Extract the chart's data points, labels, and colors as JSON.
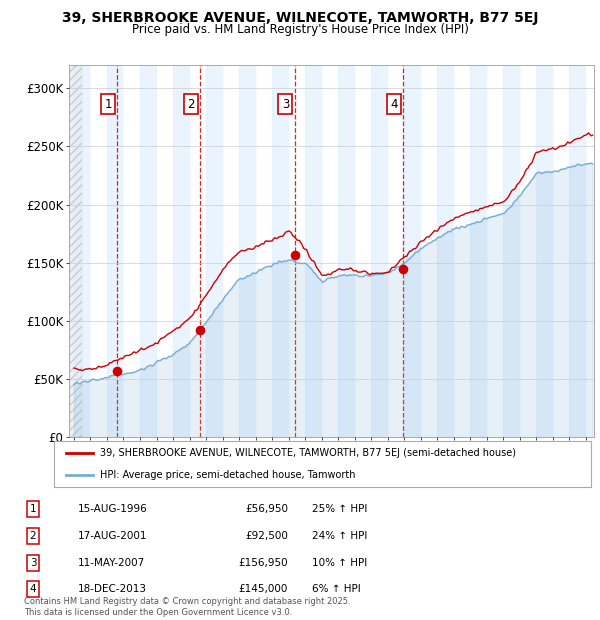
{
  "title": "39, SHERBROOKE AVENUE, WILNECOTE, TAMWORTH, B77 5EJ",
  "subtitle": "Price paid vs. HM Land Registry's House Price Index (HPI)",
  "ylim": [
    0,
    320000
  ],
  "yticks": [
    0,
    50000,
    100000,
    150000,
    200000,
    250000,
    300000
  ],
  "ytick_labels": [
    "£0",
    "£50K",
    "£100K",
    "£150K",
    "£200K",
    "£250K",
    "£300K"
  ],
  "x_start_year": 1994,
  "x_end_year": 2025.5,
  "purchases": [
    {
      "date_dec": 1996.62,
      "price": 56950,
      "label": "1"
    },
    {
      "date_dec": 2001.62,
      "price": 92500,
      "label": "2"
    },
    {
      "date_dec": 2007.36,
      "price": 156950,
      "label": "3"
    },
    {
      "date_dec": 2013.96,
      "price": 145000,
      "label": "4"
    }
  ],
  "table_rows": [
    {
      "num": "1",
      "date": "15-AUG-1996",
      "price": "£56,950",
      "hpi": "25% ↑ HPI"
    },
    {
      "num": "2",
      "date": "17-AUG-2001",
      "price": "£92,500",
      "hpi": "24% ↑ HPI"
    },
    {
      "num": "3",
      "date": "11-MAY-2007",
      "price": "£156,950",
      "hpi": "10% ↑ HPI"
    },
    {
      "num": "4",
      "date": "18-DEC-2013",
      "price": "£145,000",
      "hpi": "6% ↑ HPI"
    }
  ],
  "legend_line1": "39, SHERBROOKE AVENUE, WILNECOTE, TAMWORTH, B77 5EJ (semi-detached house)",
  "legend_line2": "HPI: Average price, semi-detached house, Tamworth",
  "footnote": "Contains HM Land Registry data © Crown copyright and database right 2025.\nThis data is licensed under the Open Government Licence v3.0.",
  "line_color": "#cc0000",
  "hpi_color": "#7aadcf",
  "bg_shade_color": "#ddeeff",
  "vline_color": "#cc0000",
  "hpi_anchor": {
    "1994.0": 46000,
    "1995.0": 47000,
    "1996.0": 49000,
    "1997.0": 54000,
    "1998.0": 58000,
    "1999.0": 64000,
    "2000.0": 72000,
    "2001.0": 82000,
    "2002.0": 98000,
    "2003.0": 118000,
    "2004.0": 135000,
    "2005.0": 142000,
    "2006.0": 148000,
    "2007.0": 152000,
    "2008.0": 148000,
    "2009.0": 132000,
    "2010.0": 138000,
    "2011.0": 138000,
    "2012.0": 138000,
    "2013.0": 140000,
    "2014.0": 150000,
    "2015.0": 162000,
    "2016.0": 172000,
    "2017.0": 180000,
    "2018.0": 185000,
    "2019.0": 190000,
    "2020.0": 194000,
    "2021.0": 208000,
    "2022.0": 228000,
    "2023.0": 228000,
    "2024.0": 232000,
    "2025.0": 235000
  },
  "price_anchor": {
    "1994.0": 58000,
    "1995.0": 59000,
    "1996.0": 61000,
    "1997.0": 68000,
    "1998.0": 74000,
    "1999.0": 80000,
    "2000.0": 90000,
    "2001.0": 100000,
    "2002.0": 120000,
    "2003.0": 143000,
    "2004.0": 158000,
    "2005.0": 162000,
    "2006.0": 168000,
    "2007.0": 175000,
    "2008.0": 158000,
    "2009.0": 137000,
    "2010.0": 142000,
    "2011.0": 142000,
    "2012.0": 140000,
    "2013.0": 142000,
    "2014.0": 155000,
    "2015.0": 168000,
    "2016.0": 178000,
    "2017.0": 187000,
    "2018.0": 194000,
    "2019.0": 200000,
    "2020.0": 205000,
    "2021.0": 222000,
    "2022.0": 248000,
    "2023.0": 250000,
    "2024.0": 255000,
    "2025.0": 260000
  }
}
